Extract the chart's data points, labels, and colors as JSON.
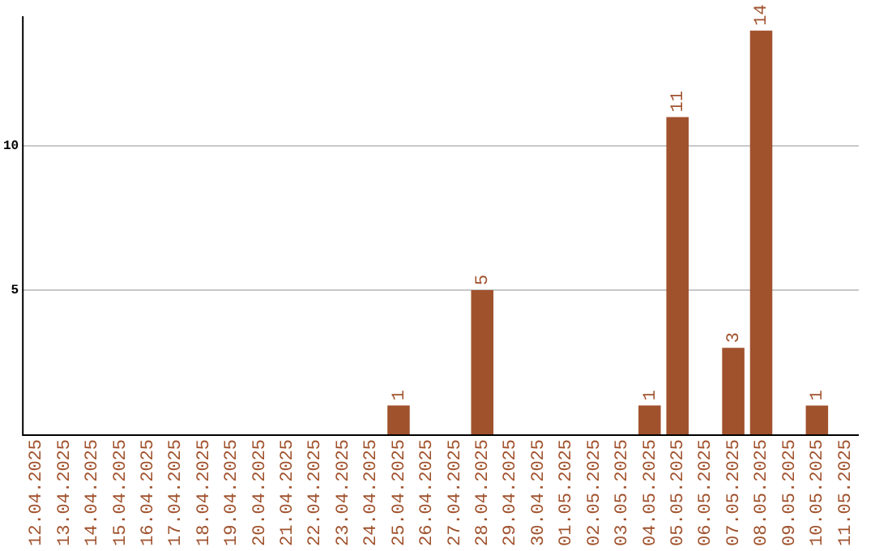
{
  "chart_data": {
    "type": "bar",
    "categories": [
      "12.04.2025",
      "13.04.2025",
      "14.04.2025",
      "15.04.2025",
      "16.04.2025",
      "17.04.2025",
      "18.04.2025",
      "19.04.2025",
      "20.04.2025",
      "21.04.2025",
      "22.04.2025",
      "23.04.2025",
      "24.04.2025",
      "25.04.2025",
      "26.04.2025",
      "27.04.2025",
      "28.04.2025",
      "29.04.2025",
      "30.04.2025",
      "01.05.2025",
      "02.05.2025",
      "03.05.2025",
      "04.05.2025",
      "05.05.2025",
      "06.05.2025",
      "07.05.2025",
      "08.05.2025",
      "09.05.2025",
      "10.05.2025",
      "11.05.2025"
    ],
    "values": [
      0,
      0,
      0,
      0,
      0,
      0,
      0,
      0,
      0,
      0,
      0,
      0,
      0,
      1,
      0,
      0,
      5,
      0,
      0,
      0,
      0,
      0,
      1,
      11,
      0,
      3,
      14,
      0,
      1,
      0
    ],
    "value_labels": [
      null,
      null,
      null,
      null,
      null,
      null,
      null,
      null,
      null,
      null,
      null,
      null,
      null,
      "1",
      null,
      null,
      "5",
      null,
      null,
      null,
      null,
      null,
      "1",
      "11",
      null,
      "3",
      "14",
      null,
      "1",
      null
    ],
    "color": "#a0522d",
    "ylim": [
      0,
      14.5
    ],
    "yticks": [
      5,
      10
    ],
    "grid": "y",
    "legend": false
  }
}
